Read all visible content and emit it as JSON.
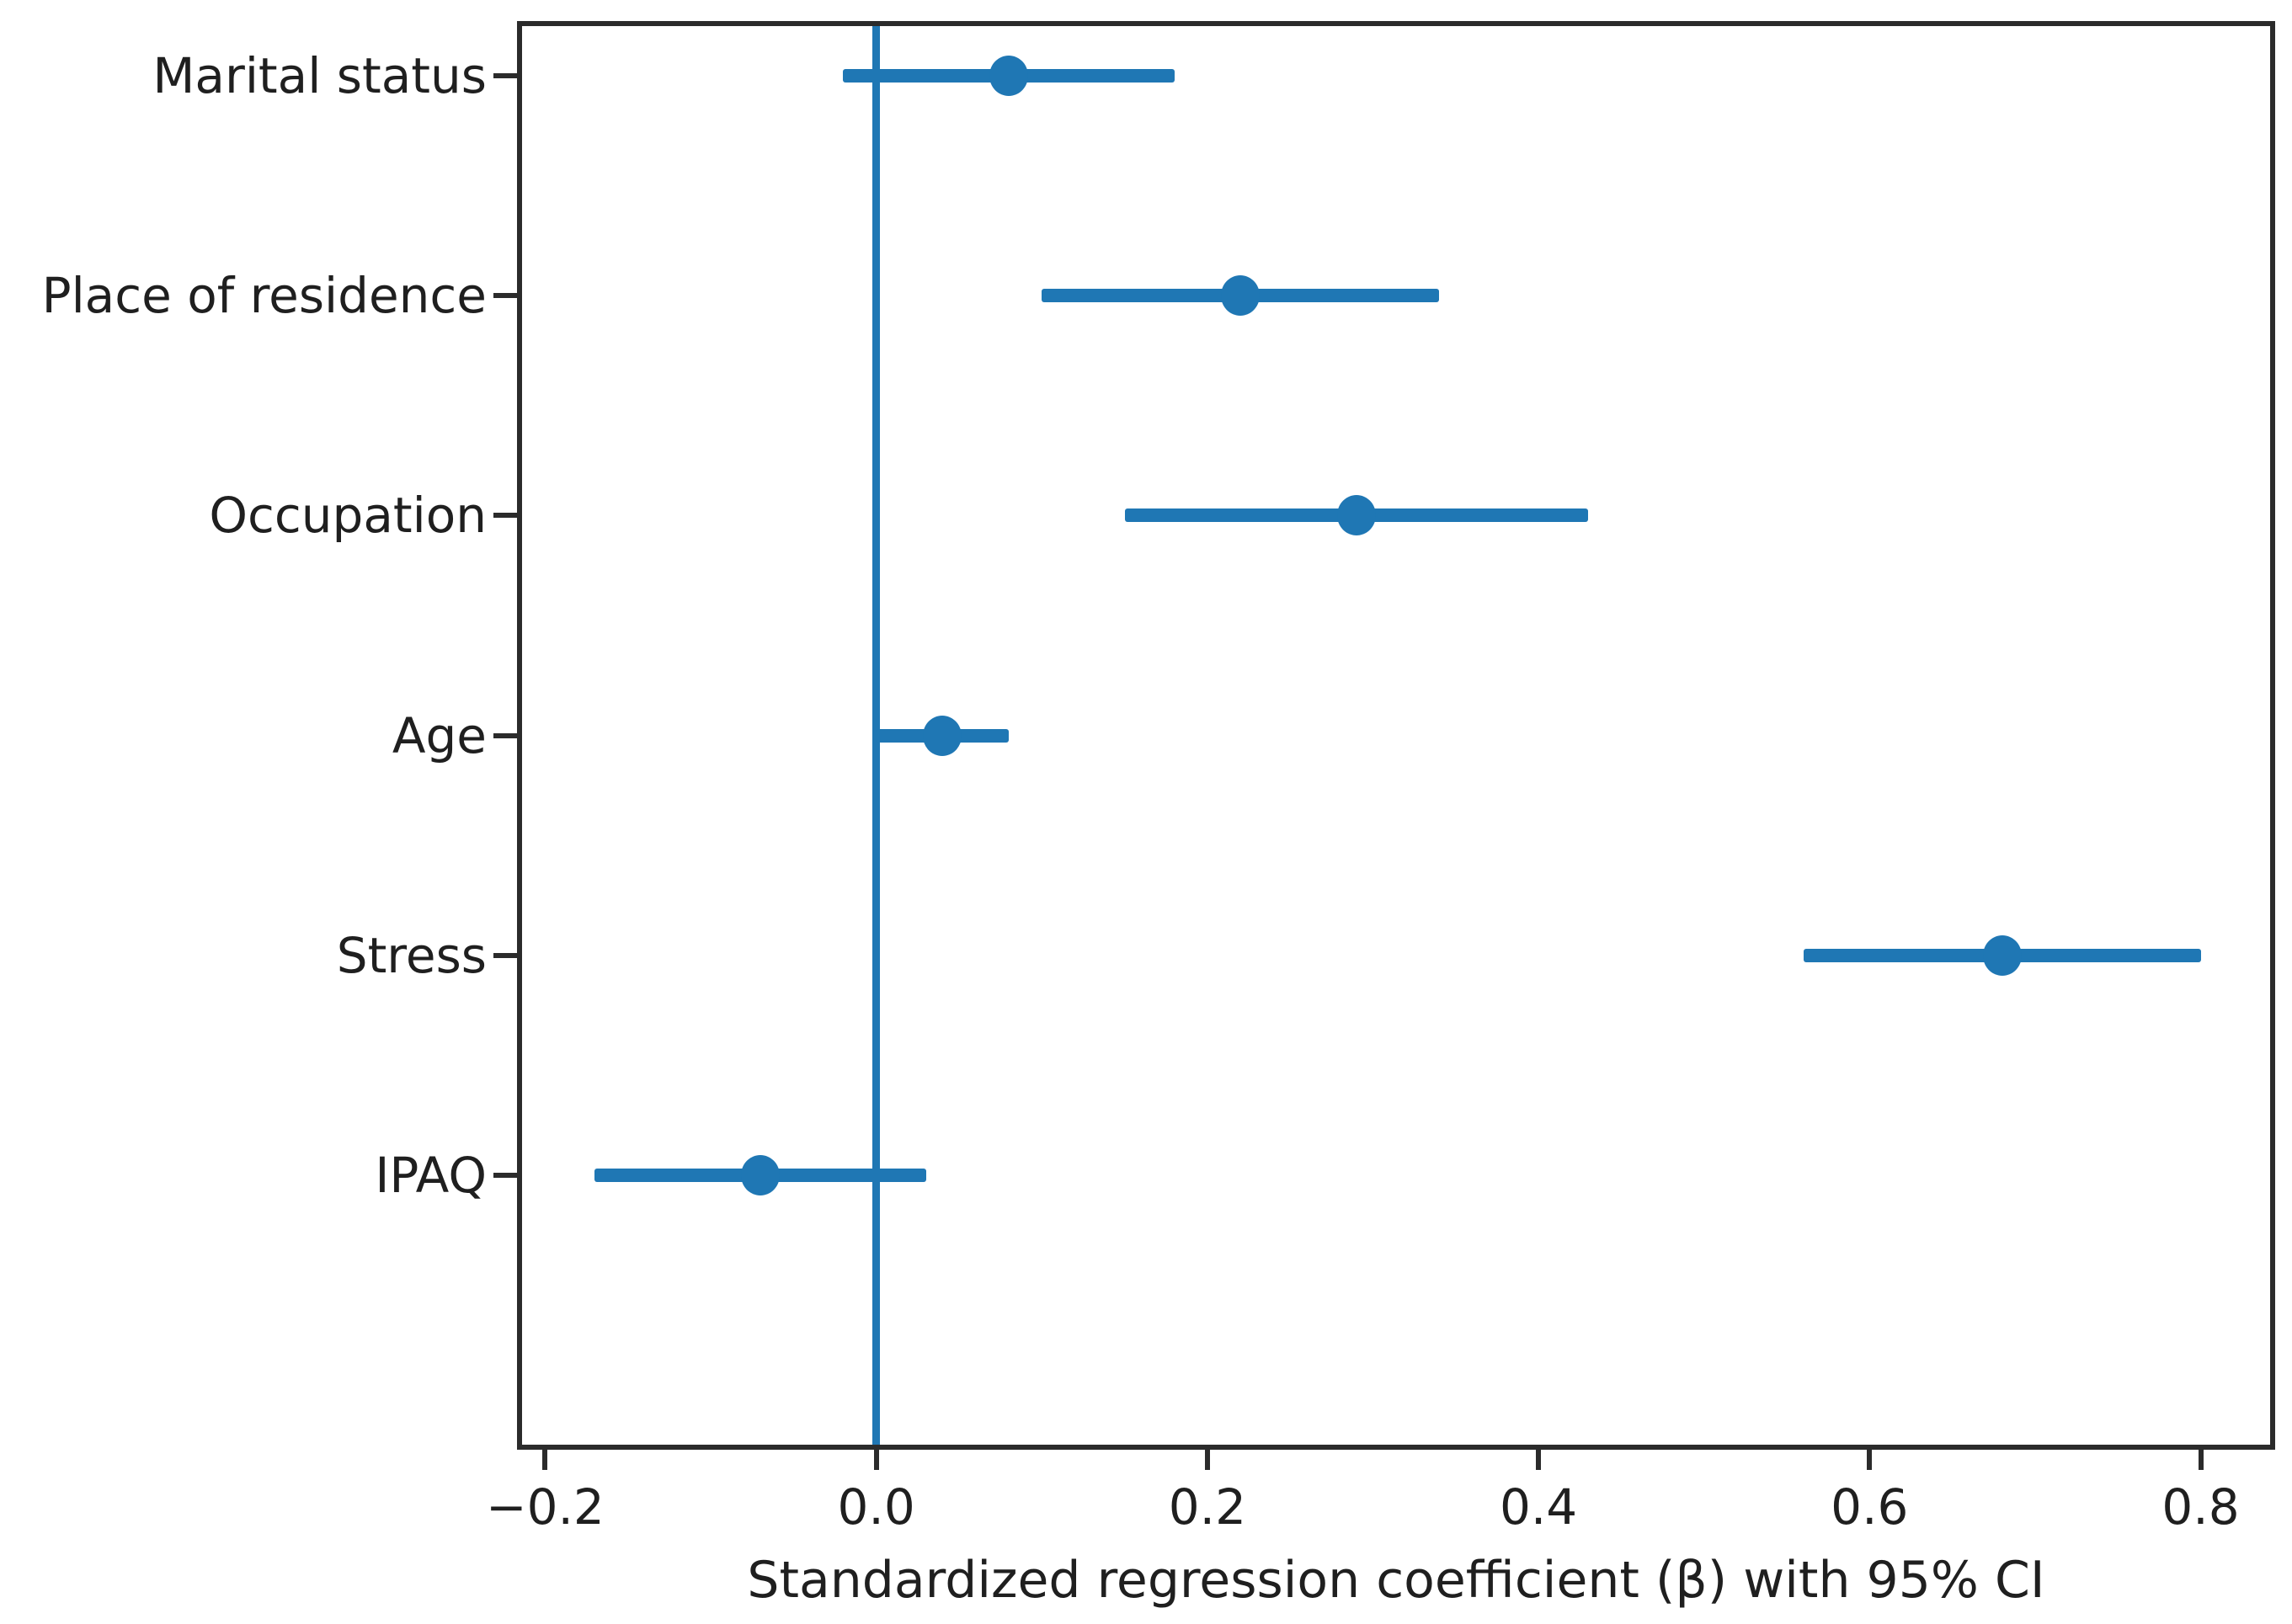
{
  "chart_data": {
    "type": "scatter",
    "subtype": "forest_plot_horizontal_errorbars",
    "title": "",
    "xlabel": "Standardized regression coefficient (β) with 95% CI",
    "ylabel": "",
    "categories": [
      "Marital status",
      "Place of residence",
      "Occupation",
      "Age",
      "Stress",
      "IPAQ"
    ],
    "series": [
      {
        "name": "Standardized regression coefficient (β) with 95% CI",
        "points": [
          {
            "category": "Marital status",
            "beta": 0.08,
            "ci_low": -0.02,
            "ci_high": 0.18
          },
          {
            "category": "Place of residence",
            "beta": 0.22,
            "ci_low": 0.1,
            "ci_high": 0.34
          },
          {
            "category": "Occupation",
            "beta": 0.29,
            "ci_low": 0.15,
            "ci_high": 0.43
          },
          {
            "category": "Age",
            "beta": 0.04,
            "ci_low": 0.0,
            "ci_high": 0.08
          },
          {
            "category": "Stress",
            "beta": 0.68,
            "ci_low": 0.56,
            "ci_high": 0.8
          },
          {
            "category": "IPAQ",
            "beta": -0.07,
            "ci_low": -0.17,
            "ci_high": 0.03
          }
        ]
      }
    ],
    "x_ticks": [
      {
        "value": -0.2,
        "label": "−0.2"
      },
      {
        "value": 0.0,
        "label": "0.0"
      },
      {
        "value": 0.2,
        "label": "0.2"
      },
      {
        "value": 0.4,
        "label": "0.4"
      },
      {
        "value": 0.6,
        "label": "0.6"
      },
      {
        "value": 0.8,
        "label": "0.8"
      }
    ],
    "xlim": [
      -0.217,
      0.845
    ],
    "reference_line_x": 0.0,
    "grid": false,
    "legend_position": "none",
    "colors": {
      "marker": "#1f77b4",
      "error_bar": "#1f77b4",
      "reference_line": "#1f77b4",
      "axis": "#2b2b2b",
      "text": "#1f1f1f",
      "background": "#ffffff"
    }
  }
}
